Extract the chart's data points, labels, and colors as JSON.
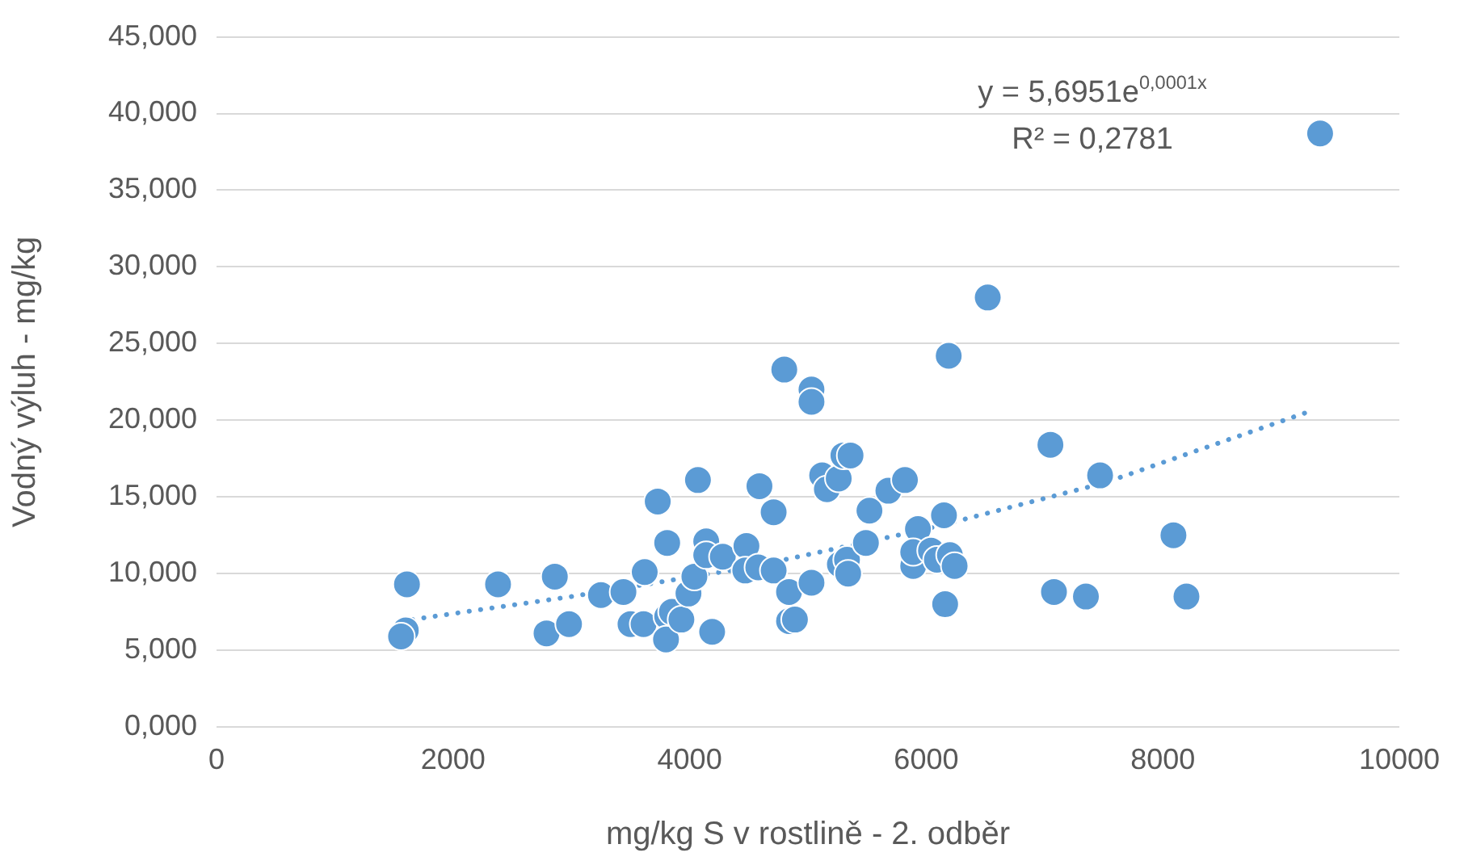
{
  "chart_data": {
    "type": "scatter",
    "xlabel": "mg/kg S v rostlině - 2. odběr",
    "ylabel": "Vodný výluh - mg/kg",
    "xlim": [
      0,
      10000
    ],
    "xticks": [
      0,
      2000,
      4000,
      6000,
      8000,
      10000
    ],
    "ylim": [
      0,
      45
    ],
    "yticks": [
      {
        "value": 0,
        "label": "0,000"
      },
      {
        "value": 5,
        "label": "5,000"
      },
      {
        "value": 10,
        "label": "10,000"
      },
      {
        "value": 15,
        "label": "15,000"
      },
      {
        "value": 20,
        "label": "20,000"
      },
      {
        "value": 25,
        "label": "25,000"
      },
      {
        "value": 30,
        "label": "30,000"
      },
      {
        "value": 35,
        "label": "35,000"
      },
      {
        "value": 40,
        "label": "40,000"
      },
      {
        "value": 45,
        "label": "45,000"
      }
    ],
    "grid": "y",
    "legend": false,
    "marker": "circle",
    "annotations": [
      "y = 5,6951e$^{0,0001x}$",
      "R² = 0,2781"
    ],
    "series": [
      {
        "color": "#5b9bd5",
        "x": [
          1610,
          1600,
          1560,
          2380,
          2860,
          2790,
          2980,
          3250,
          3440,
          3500,
          3610,
          3620,
          3730,
          3810,
          3810,
          3800,
          3850,
          3930,
          3990,
          4040,
          4070,
          4140,
          4140,
          4190,
          4280,
          4480,
          4470,
          4580,
          4590,
          4710,
          4710,
          4840,
          4800,
          4840,
          4890,
          5030,
          5030,
          5030,
          5120,
          5160,
          5260,
          5300,
          5360,
          5270,
          5330,
          5340,
          5490,
          5520,
          5680,
          5820,
          5890,
          5930,
          5890,
          6040,
          6090,
          6150,
          6160,
          6200,
          6240,
          6190,
          6520,
          7050,
          7080,
          7350,
          7470,
          8090,
          8200,
          9330
        ],
        "values": [
          9.3,
          6.3,
          5.9,
          9.3,
          9.8,
          6.1,
          6.7,
          8.6,
          8.8,
          6.7,
          6.7,
          10.1,
          14.7,
          12,
          7.2,
          5.7,
          7.5,
          7,
          8.7,
          9.8,
          16.1,
          12.1,
          11.2,
          6.2,
          11.1,
          11.8,
          10.2,
          10.4,
          15.7,
          10.2,
          14,
          8.8,
          23.3,
          6.9,
          7,
          22,
          21.2,
          9.4,
          16.4,
          15.5,
          16.2,
          17.7,
          17.7,
          10.6,
          10.9,
          10,
          12,
          14.1,
          15.4,
          16.1,
          10.5,
          12.9,
          11.4,
          11.5,
          10.9,
          13.8,
          8,
          11.2,
          10.5,
          24.2,
          28,
          18.4,
          8.8,
          8.5,
          16.4,
          12.5,
          8.5,
          38.7
        ]
      },
      {
        "type": "line",
        "color": "#5b9bd5",
        "line_style": "dotted",
        "marker": "none",
        "x": [
          1560,
          3000,
          4500,
          6000,
          7500,
          9250
        ],
        "values": [
          6.9,
          8.5,
          10.4,
          12.9,
          15.9,
          20.6
        ]
      }
    ]
  }
}
